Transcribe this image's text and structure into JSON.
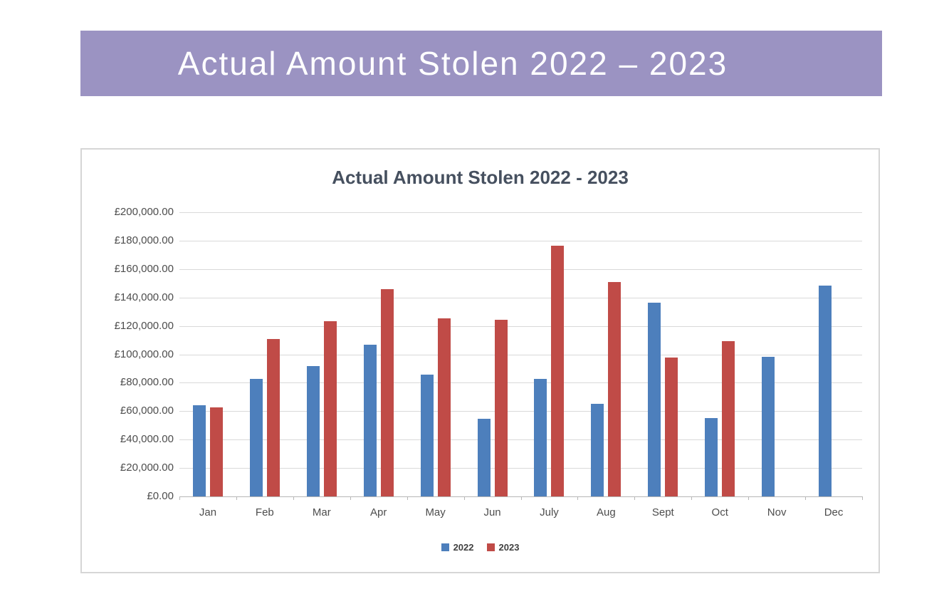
{
  "banner": {
    "title": "Actual Amount Stolen 2022 – 2023",
    "background": "#9B93C2",
    "text_color": "#FFFFFF"
  },
  "chart": {
    "title_color": "#46505F",
    "axis_label_color": "#4D4D4D",
    "gridline_color": "#D9D9D9",
    "y_axis_labels": [
      "£200,000.00",
      "£180,000.00",
      "£160,000.00",
      "£140,000.00",
      "£120,000.00",
      "£100,000.00",
      "£80,000.00",
      "£60,000.00",
      "£40,000.00",
      "£20,000.00",
      "£0.00"
    ]
  },
  "chart_data": {
    "type": "bar",
    "title": "Actual Amount Stolen 2022 - 2023",
    "categories": [
      "Jan",
      "Feb",
      "Mar",
      "Apr",
      "May",
      "Jun",
      "July",
      "Aug",
      "Sept",
      "Oct",
      "Nov",
      "Dec"
    ],
    "series": [
      {
        "name": "2022",
        "color": "#4D7FBC",
        "values": [
          64000,
          82500,
          91500,
          107000,
          85500,
          54500,
          82500,
          65000,
          136500,
          55000,
          98500,
          148500
        ]
      },
      {
        "name": "2023",
        "color": "#C04B47",
        "values": [
          62500,
          111000,
          123500,
          146000,
          125500,
          124500,
          176500,
          151000,
          98000,
          109500,
          null,
          null
        ]
      }
    ],
    "xlabel": "",
    "ylabel": "",
    "ylim": [
      0,
      200000
    ],
    "y_tick_step": 20000,
    "y_tick_format": "£#,##0.00",
    "grid": true,
    "legend_position": "bottom"
  }
}
